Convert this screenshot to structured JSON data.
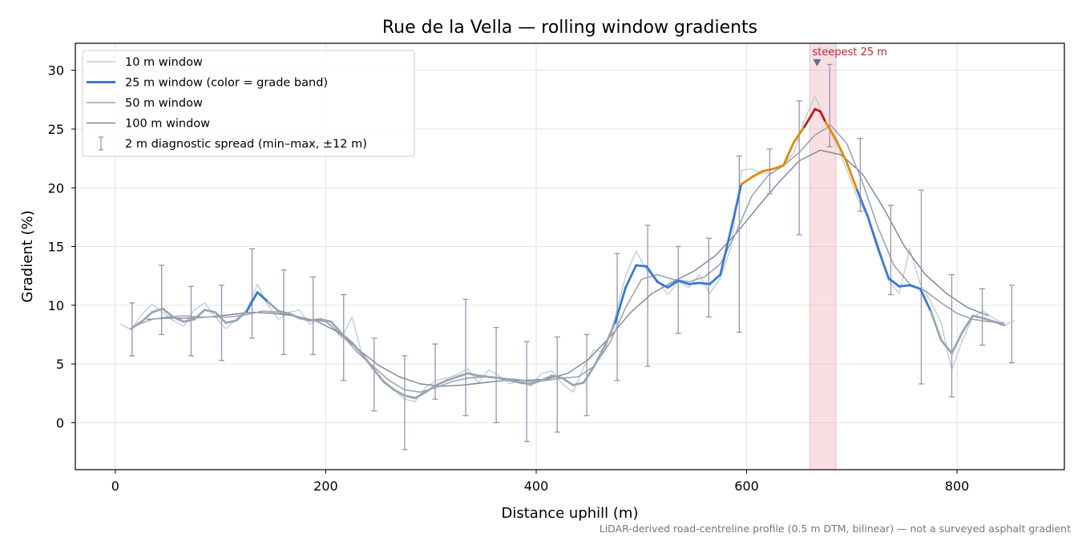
{
  "chart_data": {
    "type": "line",
    "title": "Rue de la Vella — rolling window gradients",
    "xlabel": "Distance uphill (m)",
    "ylabel": "Gradient (%)",
    "xlim": [
      -38,
      902
    ],
    "ylim": [
      -4,
      32.3
    ],
    "xticks": [
      0,
      200,
      400,
      600,
      800
    ],
    "yticks": [
      0,
      5,
      10,
      15,
      20,
      25,
      30
    ],
    "grid": true,
    "legend_position": "top-left",
    "footnote": "LiDAR-derived road-centreline profile (0.5 m DTM, bilinear) — not a surveyed asphalt gradient",
    "highlight_band": {
      "x_start": 660,
      "x_end": 685,
      "color": "#e7a3ad"
    },
    "annotation": {
      "text": "steepest 25 m",
      "x": 667,
      "y": 30.6,
      "color": "#c1272d"
    },
    "grade_band_colors": {
      "below_10": "#9aa6b2",
      "10_to_20": "#3a78d4",
      "20_to_25": "#e08a00",
      "above_25": "#c0181f"
    },
    "series": [
      {
        "name": "10 m window",
        "color": "#c4ccd8",
        "x": [
          5,
          15,
          25,
          35,
          45,
          55,
          65,
          75,
          85,
          95,
          105,
          115,
          125,
          135,
          145,
          155,
          165,
          175,
          185,
          195,
          205,
          215,
          225,
          235,
          245,
          255,
          265,
          275,
          285,
          295,
          305,
          315,
          325,
          335,
          345,
          355,
          365,
          375,
          385,
          395,
          405,
          415,
          425,
          435,
          445,
          455,
          465,
          475,
          485,
          495,
          505,
          515,
          525,
          535,
          545,
          555,
          565,
          575,
          585,
          595,
          605,
          615,
          625,
          635,
          645,
          655,
          665,
          675,
          685,
          695,
          705,
          715,
          725,
          735,
          745,
          755,
          765,
          775,
          785,
          795,
          805,
          815,
          825,
          835,
          845,
          855
        ],
        "y": [
          8.4,
          7.9,
          9.2,
          10.1,
          9.4,
          8.7,
          8.2,
          9.6,
          10.2,
          9.0,
          8.0,
          8.8,
          9.6,
          11.8,
          10.0,
          8.8,
          9.4,
          9.6,
          8.4,
          8.9,
          8.3,
          7.2,
          9.0,
          5.6,
          4.6,
          3.4,
          2.8,
          2.0,
          1.8,
          3.0,
          3.6,
          3.8,
          4.1,
          4.6,
          3.4,
          4.5,
          4.0,
          3.3,
          3.6,
          3.1,
          4.2,
          4.4,
          3.3,
          2.6,
          4.7,
          6.2,
          6.0,
          9.0,
          12.5,
          14.6,
          13.0,
          12.2,
          10.9,
          12.0,
          11.5,
          12.6,
          11.0,
          12.3,
          14.9,
          21.5,
          21.6,
          21.2,
          21.3,
          22.0,
          23.0,
          25.8,
          27.8,
          25.7,
          23.7,
          21.6,
          19.2,
          17.5,
          15.2,
          12.1,
          11.0,
          14.8,
          11.8,
          10.3,
          8.5,
          4.5,
          7.0,
          9.0,
          9.5,
          8.9,
          8.3,
          8.7
        ]
      },
      {
        "name": "25 m window (color = grade band)",
        "color": "#3a78d4",
        "x": [
          15,
          25,
          35,
          45,
          55,
          65,
          75,
          85,
          95,
          105,
          115,
          125,
          135,
          145,
          155,
          165,
          175,
          185,
          195,
          205,
          215,
          225,
          235,
          245,
          255,
          265,
          275,
          285,
          295,
          305,
          315,
          325,
          335,
          345,
          355,
          365,
          375,
          385,
          395,
          405,
          415,
          425,
          435,
          445,
          455,
          465,
          475,
          485,
          495,
          505,
          515,
          525,
          535,
          545,
          555,
          565,
          575,
          585,
          595,
          605,
          615,
          625,
          635,
          645,
          655,
          665,
          670,
          675,
          685,
          695,
          705,
          715,
          725,
          735,
          745,
          755,
          765,
          775,
          785,
          795,
          805,
          815,
          825,
          835,
          845
        ],
        "y": [
          8.0,
          8.6,
          9.4,
          9.7,
          9.0,
          8.6,
          8.8,
          9.6,
          9.4,
          8.5,
          8.7,
          9.5,
          11.1,
          10.3,
          9.5,
          9.3,
          8.9,
          8.7,
          8.8,
          8.6,
          7.6,
          6.8,
          5.8,
          4.6,
          3.5,
          2.8,
          2.3,
          2.1,
          2.6,
          3.2,
          3.6,
          3.9,
          4.2,
          4.0,
          3.9,
          3.8,
          3.6,
          3.4,
          3.3,
          3.6,
          4.0,
          3.8,
          3.2,
          3.4,
          4.8,
          6.5,
          8.5,
          11.5,
          13.4,
          13.3,
          12.0,
          11.5,
          12.1,
          11.8,
          11.9,
          11.8,
          12.6,
          16.4,
          20.3,
          20.9,
          21.4,
          21.6,
          21.9,
          23.9,
          25.2,
          26.7,
          26.5,
          25.6,
          24.1,
          22.2,
          19.8,
          17.6,
          14.8,
          12.3,
          11.6,
          11.7,
          11.4,
          9.5,
          7.0,
          5.9,
          7.7,
          9.1,
          8.9,
          8.6,
          8.3
        ]
      },
      {
        "name": "50 m window",
        "color": "#9aa6b2",
        "x": [
          20,
          35,
          50,
          65,
          80,
          95,
          110,
          125,
          140,
          155,
          170,
          185,
          200,
          215,
          230,
          245,
          260,
          275,
          290,
          305,
          320,
          335,
          350,
          365,
          380,
          395,
          410,
          425,
          440,
          455,
          470,
          485,
          500,
          515,
          530,
          545,
          560,
          575,
          590,
          605,
          620,
          635,
          650,
          665,
          680,
          695,
          710,
          725,
          740,
          755,
          770,
          785,
          800,
          815,
          830,
          845
        ],
        "y": [
          8.3,
          8.8,
          9.0,
          9.1,
          9.0,
          9.0,
          9.0,
          9.2,
          9.5,
          9.4,
          9.1,
          8.8,
          8.6,
          7.5,
          6.0,
          4.8,
          3.6,
          2.8,
          2.6,
          3.0,
          3.5,
          3.8,
          3.9,
          3.8,
          3.7,
          3.5,
          3.6,
          3.8,
          3.9,
          4.8,
          6.8,
          9.8,
          12.2,
          12.6,
          12.2,
          12.0,
          12.4,
          13.5,
          16.2,
          19.3,
          21.0,
          21.9,
          23.0,
          24.5,
          25.3,
          23.8,
          20.5,
          16.6,
          13.4,
          11.8,
          11.2,
          10.2,
          9.3,
          8.8,
          8.6,
          8.5
        ]
      },
      {
        "name": "100 m window",
        "color": "#7d8594",
        "x": [
          30,
          50,
          70,
          90,
          110,
          130,
          150,
          170,
          190,
          210,
          230,
          250,
          270,
          290,
          310,
          330,
          350,
          370,
          390,
          410,
          430,
          450,
          470,
          490,
          510,
          530,
          550,
          570,
          590,
          610,
          630,
          650,
          670,
          690,
          710,
          730,
          750,
          770,
          790,
          810,
          830
        ],
        "y": [
          8.8,
          8.9,
          8.9,
          9.0,
          9.2,
          9.4,
          9.3,
          9.1,
          8.7,
          7.8,
          6.3,
          4.9,
          3.9,
          3.3,
          3.1,
          3.2,
          3.4,
          3.6,
          3.6,
          3.7,
          4.2,
          5.4,
          7.3,
          9.4,
          11.0,
          12.0,
          12.9,
          14.2,
          16.1,
          18.3,
          20.4,
          22.3,
          23.2,
          22.8,
          21.2,
          18.3,
          15.0,
          12.6,
          11.0,
          9.8,
          9.1
        ]
      }
    ],
    "diagnostic_spread": {
      "name": "2 m diagnostic spread (min–max, ±12 m)",
      "color": "#9a92b5",
      "points": [
        {
          "x": 16,
          "low": 5.7,
          "high": 10.2
        },
        {
          "x": 44,
          "low": 7.5,
          "high": 13.4
        },
        {
          "x": 72,
          "low": 5.7,
          "high": 11.6
        },
        {
          "x": 101,
          "low": 5.3,
          "high": 11.7
        },
        {
          "x": 130,
          "low": 7.2,
          "high": 14.8
        },
        {
          "x": 160,
          "low": 5.8,
          "high": 13.0
        },
        {
          "x": 188,
          "low": 5.8,
          "high": 12.4
        },
        {
          "x": 217,
          "low": 3.6,
          "high": 10.9
        },
        {
          "x": 246,
          "low": 1.0,
          "high": 7.2
        },
        {
          "x": 275,
          "low": -2.3,
          "high": 5.7
        },
        {
          "x": 304,
          "low": 2.0,
          "high": 6.7
        },
        {
          "x": 333,
          "low": 0.6,
          "high": 10.5
        },
        {
          "x": 362,
          "low": 0.0,
          "high": 8.1
        },
        {
          "x": 391,
          "low": -1.6,
          "high": 6.9
        },
        {
          "x": 420,
          "low": -0.8,
          "high": 7.3
        },
        {
          "x": 448,
          "low": 0.6,
          "high": 7.5
        },
        {
          "x": 477,
          "low": 3.6,
          "high": 14.4
        },
        {
          "x": 506,
          "low": 4.8,
          "high": 16.8
        },
        {
          "x": 535,
          "low": 7.6,
          "high": 15.0
        },
        {
          "x": 564,
          "low": 9.0,
          "high": 15.7
        },
        {
          "x": 593,
          "low": 7.7,
          "high": 22.7
        },
        {
          "x": 622,
          "low": 19.5,
          "high": 23.3
        },
        {
          "x": 650,
          "low": 16.0,
          "high": 27.4
        },
        {
          "x": 679,
          "low": 23.5,
          "high": 30.5
        },
        {
          "x": 708,
          "low": 18.0,
          "high": 24.2
        },
        {
          "x": 737,
          "low": 10.9,
          "high": 18.5
        },
        {
          "x": 766,
          "low": 3.3,
          "high": 19.8
        },
        {
          "x": 795,
          "low": 2.2,
          "high": 12.6
        },
        {
          "x": 824,
          "low": 6.6,
          "high": 11.4
        },
        {
          "x": 852,
          "low": 5.1,
          "high": 11.7
        }
      ]
    }
  }
}
